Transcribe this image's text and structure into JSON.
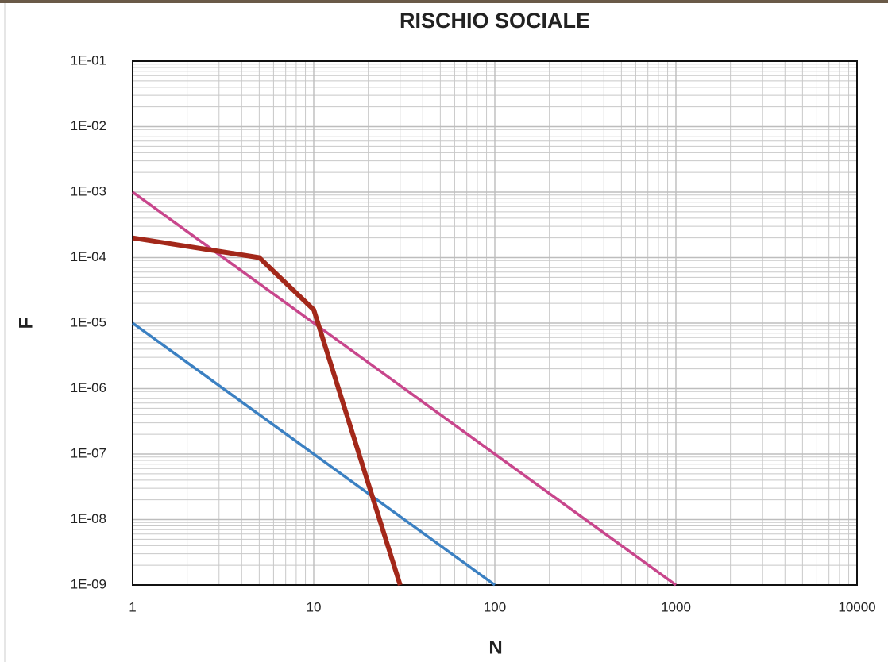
{
  "chart_data": {
    "type": "line",
    "title": "RISCHIO SOCIALE",
    "x_label": "N",
    "y_label": "F",
    "x_log": true,
    "y_log": true,
    "grid": true,
    "minor_grid": true,
    "xlim": [
      1,
      10000
    ],
    "xticks": [
      1,
      10,
      100,
      1000,
      10000
    ],
    "ylim": [
      1e-09,
      0.1
    ],
    "yticks": [
      {
        "value": 0.1,
        "label": "1E-01"
      },
      {
        "value": 0.01,
        "label": "1E-02"
      },
      {
        "value": 0.001,
        "label": "1E-03"
      },
      {
        "value": 0.0001,
        "label": "1E-04"
      },
      {
        "value": 1e-05,
        "label": "1E-05"
      },
      {
        "value": 1e-06,
        "label": "1E-06"
      },
      {
        "value": 1e-07,
        "label": "1E-07"
      },
      {
        "value": 1e-08,
        "label": "1E-08"
      },
      {
        "value": 1e-09,
        "label": "1E-09"
      }
    ],
    "series": [
      {
        "color": "#c8468c",
        "x": [
          1,
          1000
        ],
        "values": [
          0.001,
          1e-09
        ]
      },
      {
        "color": "#3b80c2",
        "x": [
          1,
          100
        ],
        "values": [
          1e-05,
          1e-09
        ]
      },
      {
        "color": "#a3281a",
        "x": [
          1,
          5,
          10,
          30
        ],
        "values": [
          0.0002,
          0.0001,
          1.6e-05,
          1e-09
        ]
      }
    ]
  }
}
